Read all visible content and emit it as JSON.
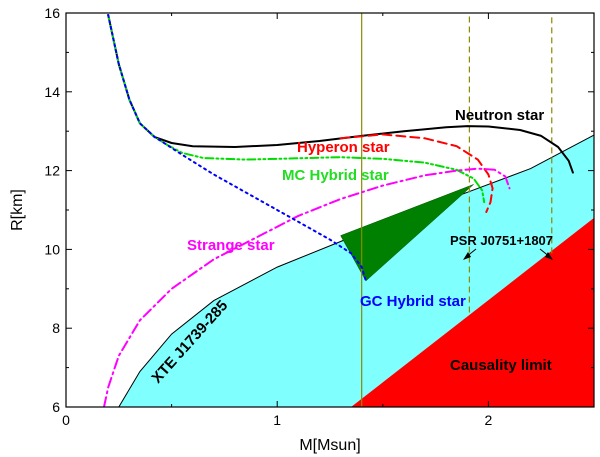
{
  "chart_data": {
    "type": "line",
    "xlabel": "M[Msun]",
    "ylabel": "R[km]",
    "xlim": [
      0,
      2.5
    ],
    "ylim": [
      6,
      16
    ],
    "x_ticks": [
      "0",
      "1",
      "2"
    ],
    "y_ticks": [
      "6",
      "8",
      "10",
      "12",
      "14",
      "16"
    ],
    "grid": false,
    "series": [
      {
        "name": "Neutron star",
        "color": "#000000",
        "style": "solid",
        "points": [
          [
            0.2,
            15.95
          ],
          [
            0.25,
            14.7
          ],
          [
            0.3,
            13.8
          ],
          [
            0.35,
            13.2
          ],
          [
            0.42,
            12.85
          ],
          [
            0.5,
            12.7
          ],
          [
            0.6,
            12.62
          ],
          [
            0.8,
            12.6
          ],
          [
            1.0,
            12.65
          ],
          [
            1.2,
            12.75
          ],
          [
            1.4,
            12.88
          ],
          [
            1.6,
            13.0
          ],
          [
            1.8,
            13.1
          ],
          [
            1.9,
            13.13
          ],
          [
            2.0,
            13.12
          ],
          [
            2.15,
            13.03
          ],
          [
            2.25,
            12.88
          ],
          [
            2.33,
            12.6
          ],
          [
            2.38,
            12.25
          ],
          [
            2.4,
            11.95
          ]
        ]
      },
      {
        "name": "Hyperon star",
        "color": "#ff0000",
        "style": "dashed",
        "points": [
          [
            1.3,
            12.82
          ],
          [
            1.5,
            12.92
          ],
          [
            1.7,
            12.82
          ],
          [
            1.85,
            12.62
          ],
          [
            1.95,
            12.28
          ],
          [
            2.0,
            11.9
          ],
          [
            2.02,
            11.55
          ],
          [
            2.01,
            11.2
          ],
          [
            1.99,
            10.95
          ]
        ]
      },
      {
        "name": "MC Hybrid star",
        "color": "#00dd00",
        "style": "dash-dot-dot",
        "points": [
          [
            0.2,
            15.95
          ],
          [
            0.25,
            14.7
          ],
          [
            0.3,
            13.8
          ],
          [
            0.35,
            13.2
          ],
          [
            0.42,
            12.85
          ],
          [
            0.48,
            12.65
          ],
          [
            0.55,
            12.45
          ],
          [
            0.65,
            12.32
          ],
          [
            0.85,
            12.28
          ],
          [
            1.0,
            12.3
          ],
          [
            1.3,
            12.34
          ],
          [
            1.5,
            12.3
          ],
          [
            1.7,
            12.2
          ],
          [
            1.85,
            12.02
          ],
          [
            1.93,
            11.8
          ],
          [
            1.97,
            11.5
          ],
          [
            1.98,
            11.2
          ]
        ]
      },
      {
        "name": "Strange star",
        "color": "#ff00ff",
        "style": "dash-dot",
        "points": [
          [
            0.18,
            6.0
          ],
          [
            0.2,
            6.5
          ],
          [
            0.25,
            7.3
          ],
          [
            0.35,
            8.2
          ],
          [
            0.5,
            9.0
          ],
          [
            0.7,
            9.75
          ],
          [
            0.9,
            10.3
          ],
          [
            1.1,
            10.85
          ],
          [
            1.3,
            11.28
          ],
          [
            1.5,
            11.62
          ],
          [
            1.7,
            11.88
          ],
          [
            1.85,
            12.0
          ],
          [
            1.95,
            12.05
          ],
          [
            2.03,
            12.02
          ],
          [
            2.08,
            11.85
          ],
          [
            2.1,
            11.55
          ]
        ]
      },
      {
        "name": "GC Hybrid star",
        "color": "#0000ff",
        "style": "dotted",
        "points": [
          [
            0.2,
            15.95
          ],
          [
            0.25,
            14.7
          ],
          [
            0.3,
            13.8
          ],
          [
            0.35,
            13.2
          ],
          [
            0.42,
            12.85
          ],
          [
            0.45,
            12.75
          ],
          [
            0.55,
            12.4
          ],
          [
            0.7,
            11.9
          ],
          [
            0.9,
            11.3
          ],
          [
            1.1,
            10.7
          ],
          [
            1.25,
            10.25
          ],
          [
            1.35,
            9.9
          ],
          [
            1.4,
            9.55
          ],
          [
            1.42,
            9.2
          ]
        ]
      }
    ],
    "shaded_regions": [
      {
        "name": "XTE J1739-285",
        "color": "#80ffff",
        "boundary": [
          [
            0.25,
            6.0
          ],
          [
            0.35,
            6.9
          ],
          [
            0.5,
            7.85
          ],
          [
            0.7,
            8.7
          ],
          [
            1.0,
            9.55
          ],
          [
            1.3,
            10.2
          ],
          [
            1.6,
            10.85
          ],
          [
            1.9,
            11.45
          ],
          [
            2.2,
            12.05
          ],
          [
            2.5,
            12.9
          ]
        ]
      },
      {
        "name": "Causality limit",
        "color": "#ff0000",
        "boundary": [
          [
            1.35,
            6.0
          ],
          [
            2.5,
            10.8
          ]
        ]
      },
      {
        "name": "GC Hybrid band",
        "color": "#008000",
        "boundary": [
          [
            1.3,
            10.35
          ],
          [
            1.93,
            11.65
          ],
          [
            1.42,
            9.2
          ]
        ]
      }
    ],
    "vertical_lines": [
      {
        "x": 1.4,
        "color": "#8b8b00",
        "style": "solid",
        "ymin": 6.0
      },
      {
        "x": 1.91,
        "color": "#8b8b00",
        "style": "dashed",
        "ymin": 8.4
      },
      {
        "x": 2.3,
        "color": "#8b8b00",
        "style": "dashed",
        "ymin": 9.9
      }
    ],
    "annotations": {
      "neutron": "Neutron star",
      "hyperon": "Hyperon star",
      "mc_hybrid": "MC Hybrid star",
      "strange": "Strange star",
      "gc_hybrid": "GC Hybrid star",
      "psr": "PSR J0751+1807",
      "xte": "XTE J1739-285",
      "causality": "Causality limit"
    },
    "colors": {
      "xte_fill": "#80ffff",
      "causality_fill": "#ff0000",
      "gc_band_fill": "#008000",
      "vline": "#8b8b00"
    }
  }
}
